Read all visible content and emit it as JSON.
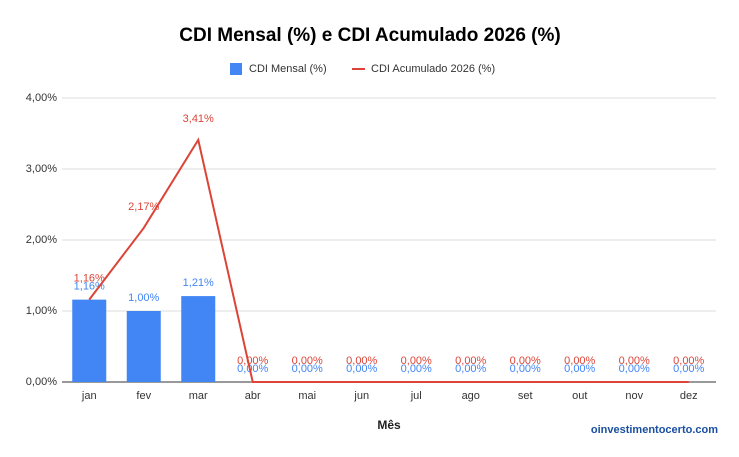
{
  "chart_data": {
    "type": "combo",
    "title": "CDI Mensal (%) e CDI Acumulado 2026 (%)",
    "x_label": "Mês",
    "source": "oinvestimentocerto.com",
    "categories": [
      "jan",
      "fev",
      "mar",
      "abr",
      "mai",
      "jun",
      "jul",
      "ago",
      "set",
      "out",
      "nov",
      "dez"
    ],
    "series": [
      {
        "name": "CDI Mensal (%)",
        "type": "bar",
        "color": "#4285f4",
        "values": [
          1.16,
          1.0,
          1.21,
          0,
          0,
          0,
          0,
          0,
          0,
          0,
          0,
          0
        ],
        "value_labels": [
          "1,16%",
          "1,00%",
          "1,21%",
          "0,00%",
          "0,00%",
          "0,00%",
          "0,00%",
          "0,00%",
          "0,00%",
          "0,00%",
          "0,00%",
          "0,00%"
        ]
      },
      {
        "name": "CDI Acumulado 2026 (%)",
        "type": "line",
        "color": "#db4437",
        "values": [
          1.16,
          2.17,
          3.41,
          0,
          0,
          0,
          0,
          0,
          0,
          0,
          0,
          0
        ],
        "value_labels": [
          "1,16%",
          "2,17%",
          "3,41%",
          "0,00%",
          "0,00%",
          "0,00%",
          "0,00%",
          "0,00%",
          "0,00%",
          "0,00%",
          "0,00%",
          "0,00%"
        ]
      }
    ],
    "ylim": [
      0,
      4
    ],
    "yticks": [
      {
        "value": 0,
        "label": "0,00%"
      },
      {
        "value": 1,
        "label": "1,00%"
      },
      {
        "value": 2,
        "label": "2,00%"
      },
      {
        "value": 3,
        "label": "3,00%"
      },
      {
        "value": 4,
        "label": "4,00%"
      }
    ],
    "grid": true
  }
}
